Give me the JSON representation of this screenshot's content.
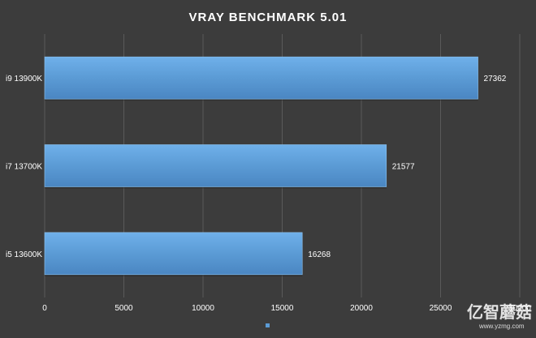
{
  "chart_data": {
    "type": "bar",
    "orientation": "horizontal",
    "title": "VRAY BENCHMARK 5.01",
    "categories": [
      "i9 13900K",
      "i7 13700K",
      "i5 13600K"
    ],
    "values": [
      27362,
      21577,
      16268
    ],
    "xlim": [
      0,
      30000
    ],
    "xticks": [
      0,
      5000,
      10000,
      15000,
      20000,
      25000,
      30000
    ],
    "grid": true,
    "legend": "bottom",
    "colors": {
      "bar": "#5b9bd5",
      "background": "#3c3c3c",
      "grid": "#5a5a5a"
    }
  },
  "watermark": {
    "main": "亿智蘑菇",
    "sub": "www.yzmg.com"
  }
}
